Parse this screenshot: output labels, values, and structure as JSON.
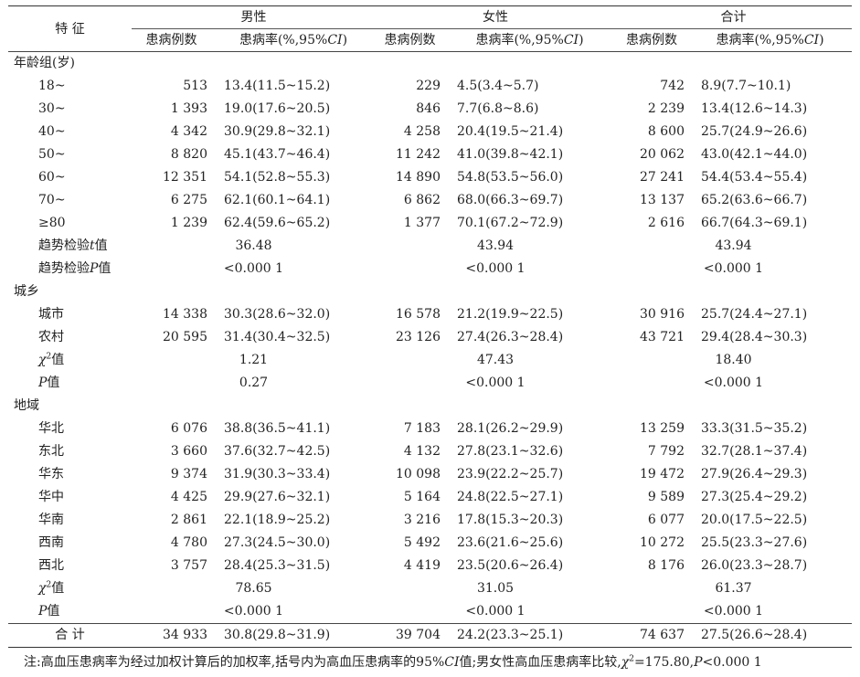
{
  "headers": {
    "feature": "特  征",
    "groups": [
      "男性",
      "女性",
      "合计"
    ],
    "sub": [
      "患病例数",
      "患病率(%,95%CI)"
    ]
  },
  "sections": [
    {
      "title": "年龄组(岁)",
      "rows": [
        {
          "label": "18~",
          "m": [
            "513",
            "13.4(11.5~15.2)"
          ],
          "f": [
            "229",
            "4.5(3.4~5.7)"
          ],
          "t": [
            "742",
            "8.9(7.7~10.1)"
          ]
        },
        {
          "label": "30~",
          "m": [
            "1 393",
            "19.0(17.6~20.5)"
          ],
          "f": [
            "846",
            "7.7(6.8~8.6)"
          ],
          "t": [
            "2 239",
            "13.4(12.6~14.3)"
          ]
        },
        {
          "label": "40~",
          "m": [
            "4 342",
            "30.9(29.8~32.1)"
          ],
          "f": [
            "4 258",
            "20.4(19.5~21.4)"
          ],
          "t": [
            "8 600",
            "25.7(24.9~26.6)"
          ]
        },
        {
          "label": "50~",
          "m": [
            "8 820",
            "45.1(43.7~46.4)"
          ],
          "f": [
            "11 242",
            "41.0(39.8~42.1)"
          ],
          "t": [
            "20 062",
            "43.0(42.1~44.0)"
          ]
        },
        {
          "label": "60~",
          "m": [
            "12 351",
            "54.1(52.8~55.3)"
          ],
          "f": [
            "14 890",
            "54.8(53.5~56.0)"
          ],
          "t": [
            "27 241",
            "54.4(53.4~55.4)"
          ]
        },
        {
          "label": "70~",
          "m": [
            "6 275",
            "62.1(60.1~64.1)"
          ],
          "f": [
            "6 862",
            "68.0(66.3~69.7)"
          ],
          "t": [
            "13 137",
            "65.2(63.6~66.7)"
          ]
        },
        {
          "label": "≥80",
          "m": [
            "1 239",
            "62.4(59.6~65.2)"
          ],
          "f": [
            "1 377",
            "70.1(67.2~72.9)"
          ],
          "t": [
            "2 616",
            "66.7(64.3~69.1)"
          ]
        }
      ],
      "tests": [
        {
          "label_pre": "趋势检验",
          "label_it": "t",
          "label_post": "值",
          "m": "36.48",
          "f": "43.94",
          "t": "43.94"
        },
        {
          "label_pre": "趋势检验",
          "label_it": "P",
          "label_post": "值",
          "m": "<0.000 1",
          "f": "<0.000 1",
          "t": "<0.000 1"
        }
      ]
    },
    {
      "title": "城乡",
      "rows": [
        {
          "label": "城市",
          "m": [
            "14 338",
            "30.3(28.6~32.0)"
          ],
          "f": [
            "16 578",
            "21.2(19.9~22.5)"
          ],
          "t": [
            "30 916",
            "25.7(24.4~27.1)"
          ]
        },
        {
          "label": "农村",
          "m": [
            "20 595",
            "31.4(30.4~32.5)"
          ],
          "f": [
            "23 126",
            "27.4(26.3~28.4)"
          ],
          "t": [
            "43 721",
            "29.4(28.4~30.3)"
          ]
        }
      ],
      "tests": [
        {
          "label_pre": "",
          "label_it": "χ",
          "label_sup": "2",
          "label_post": "值",
          "m": "1.21",
          "f": "47.43",
          "t": "18.40"
        },
        {
          "label_pre": "",
          "label_it": "P",
          "label_post": "值",
          "m": "0.27",
          "f": "<0.000 1",
          "t": "<0.000 1"
        }
      ]
    },
    {
      "title": "地域",
      "rows": [
        {
          "label": "华北",
          "m": [
            "6 076",
            "38.8(36.5~41.1)"
          ],
          "f": [
            "7 183",
            "28.1(26.2~29.9)"
          ],
          "t": [
            "13 259",
            "33.3(31.5~35.2)"
          ]
        },
        {
          "label": "东北",
          "m": [
            "3 660",
            "37.6(32.7~42.5)"
          ],
          "f": [
            "4 132",
            "27.8(23.1~32.6)"
          ],
          "t": [
            "7 792",
            "32.7(28.1~37.4)"
          ]
        },
        {
          "label": "华东",
          "m": [
            "9 374",
            "31.9(30.3~33.4)"
          ],
          "f": [
            "10 098",
            "23.9(22.2~25.7)"
          ],
          "t": [
            "19 472",
            "27.9(26.4~29.3)"
          ]
        },
        {
          "label": "华中",
          "m": [
            "4 425",
            "29.9(27.6~32.1)"
          ],
          "f": [
            "5 164",
            "24.8(22.5~27.1)"
          ],
          "t": [
            "9 589",
            "27.3(25.4~29.2)"
          ]
        },
        {
          "label": "华南",
          "m": [
            "2 861",
            "22.1(18.9~25.2)"
          ],
          "f": [
            "3 216",
            "17.8(15.3~20.3)"
          ],
          "t": [
            "6 077",
            "20.0(17.5~22.5)"
          ]
        },
        {
          "label": "西南",
          "m": [
            "4 780",
            "27.3(24.5~30.0)"
          ],
          "f": [
            "5 492",
            "23.6(21.6~25.6)"
          ],
          "t": [
            "10 272",
            "25.5(23.3~27.6)"
          ]
        },
        {
          "label": "西北",
          "m": [
            "3 757",
            "28.4(25.3~31.5)"
          ],
          "f": [
            "4 419",
            "23.5(20.6~26.4)"
          ],
          "t": [
            "8 176",
            "26.0(23.3~28.7)"
          ]
        }
      ],
      "tests": [
        {
          "label_pre": "",
          "label_it": "χ",
          "label_sup": "2",
          "label_post": "值",
          "m": "78.65",
          "f": "31.05",
          "t": "61.37"
        },
        {
          "label_pre": "",
          "label_it": "P",
          "label_post": "值",
          "m": "<0.000 1",
          "f": "<0.000 1",
          "t": "<0.000 1"
        }
      ]
    }
  ],
  "total": {
    "label": "合  计",
    "m": [
      "34 933",
      "30.8(29.8~31.9)"
    ],
    "f": [
      "39 704",
      "24.2(23.3~25.1)"
    ],
    "t": [
      "74 637",
      "27.5(26.6~28.4)"
    ]
  },
  "note": {
    "p1": "注:高血压患病率为经过加权计算后的加权率,括号内为高血压患病率的95%",
    "ci": "CI",
    "p2": "值;男女性高血压患病率比较,",
    "chi": "χ",
    "sup": "2",
    "p3": "=175.80,",
    "p": "P",
    "p4": "<0.000 1"
  }
}
